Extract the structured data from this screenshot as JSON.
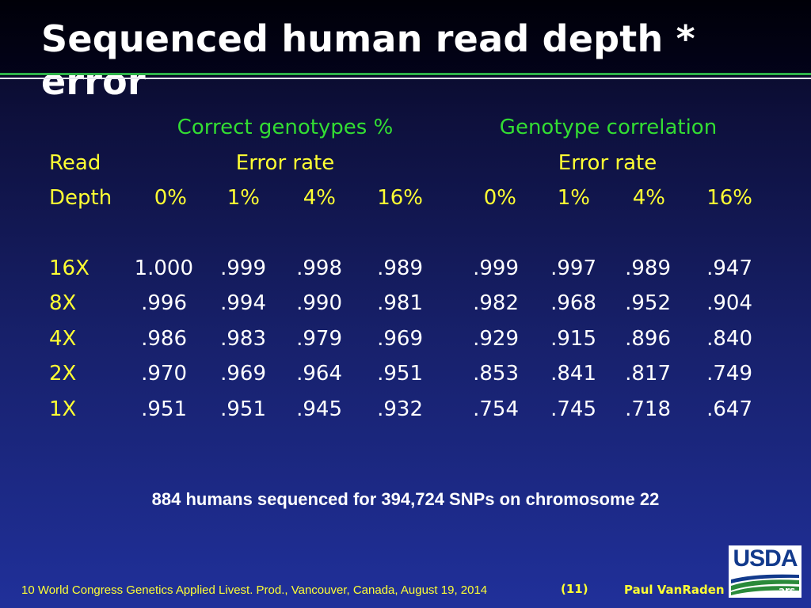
{
  "title": "Sequenced human read depth * error",
  "group_headers": {
    "left": "Correct genotypes %",
    "right": "Genotype correlation"
  },
  "row_header_top": "Read",
  "row_header_bottom": "Depth",
  "error_rate_label_left": "Error rate",
  "error_rate_label_right": "Error rate",
  "error_rates": [
    "0%",
    "1%",
    "4%",
    "16%"
  ],
  "table": {
    "rows": [
      {
        "depth": "16X",
        "correct": [
          "1.000",
          ".999",
          ".998",
          ".989"
        ],
        "correlation": [
          ".999",
          ".997",
          ".989",
          ".947"
        ]
      },
      {
        "depth": "8X",
        "correct": [
          ".996",
          ".994",
          ".990",
          ".981"
        ],
        "correlation": [
          ".982",
          ".968",
          ".952",
          ".904"
        ]
      },
      {
        "depth": "4X",
        "correct": [
          ".986",
          ".983",
          ".979",
          ".969"
        ],
        "correlation": [
          ".929",
          ".915",
          ".896",
          ".840"
        ]
      },
      {
        "depth": "2X",
        "correct": [
          ".970",
          ".969",
          ".964",
          ".951"
        ],
        "correlation": [
          ".853",
          ".841",
          ".817",
          ".749"
        ]
      },
      {
        "depth": "1X",
        "correct": [
          ".951",
          ".951",
          ".945",
          ".932"
        ],
        "correlation": [
          ".754",
          ".745",
          ".718",
          ".647"
        ]
      }
    ]
  },
  "note": "884 humans sequenced for 394,724 SNPs on chromosome 22",
  "footer": {
    "conference": "10 World Congress Genetics Applied Livest. Prod., Vancouver, Canada, August 19, 2014",
    "slide_number": "(11)",
    "author": "Paul VanRaden"
  },
  "logo": {
    "text": "USDA",
    "icon": "usda-logo-icon"
  },
  "colors": {
    "group_header": "#33dd33",
    "labels": "#ffff33",
    "values": "#ffffff",
    "background": "#17206a"
  }
}
